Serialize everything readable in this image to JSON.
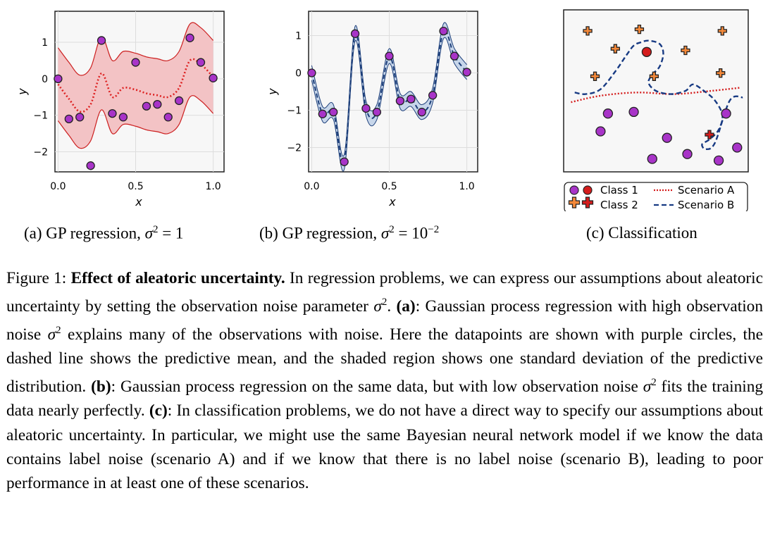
{
  "colors": {
    "panel_a_band": "#f3c3c5",
    "panel_a_line": "#cc1f1f",
    "panel_a_mean": "#dd2222",
    "panel_b_band": "#c7d6ea",
    "panel_b_line": "#1d3f7a",
    "panel_b_mean": "#1d3f7a",
    "point_fill": "#a834c8",
    "class1": "#a834c8",
    "class2": "#f4893a",
    "class2_dark": "#d41c1c",
    "scenario_a": "#d41c1c",
    "scenario_b": "#173a83"
  },
  "chart_data": [
    {
      "id": "a",
      "type": "scatter",
      "title": "",
      "xlabel": "x",
      "ylabel": "y",
      "xlim": [
        -0.02,
        1.07
      ],
      "ylim": [
        -2.55,
        1.85
      ],
      "xticks": [
        0.0,
        0.5,
        1.0
      ],
      "xtick_labels": [
        "0.0",
        "0.5",
        "1.0"
      ],
      "yticks": [
        1,
        0,
        -1,
        -2
      ],
      "ytick_labels": [
        "1",
        "0",
        "−1",
        "−2"
      ],
      "tick_side": "left",
      "points": {
        "x": [
          0.0,
          0.07,
          0.14,
          0.21,
          0.28,
          0.35,
          0.42,
          0.5,
          0.57,
          0.64,
          0.71,
          0.78,
          0.85,
          0.92,
          1.0
        ],
        "y": [
          0.0,
          -1.1,
          -1.05,
          -2.38,
          1.05,
          -0.95,
          -1.05,
          0.45,
          -0.75,
          -0.7,
          -1.05,
          -0.6,
          1.12,
          0.45,
          0.02
        ]
      },
      "mean": {
        "x": [
          0.0,
          0.07,
          0.14,
          0.21,
          0.28,
          0.35,
          0.42,
          0.5,
          0.57,
          0.64,
          0.71,
          0.78,
          0.85,
          0.92,
          1.0
        ],
        "y": [
          -0.15,
          -0.55,
          -0.9,
          -0.7,
          0.15,
          -0.5,
          -0.25,
          -0.3,
          -0.4,
          -0.45,
          -0.5,
          -0.25,
          0.5,
          0.4,
          0.05
        ]
      },
      "band_std": 1.0
    },
    {
      "id": "b",
      "type": "scatter",
      "title": "",
      "xlabel": "x",
      "ylabel": "y",
      "xlim": [
        -0.02,
        1.07
      ],
      "ylim": [
        -2.65,
        1.65
      ],
      "xticks": [
        0.0,
        0.5,
        1.0
      ],
      "xtick_labels": [
        "0.0",
        "0.5",
        "1.0"
      ],
      "yticks": [
        1,
        0,
        -1,
        -2
      ],
      "ytick_labels": [
        "1",
        "0",
        "−1",
        "−2"
      ],
      "tick_side": "left",
      "points": {
        "x": [
          0.0,
          0.07,
          0.14,
          0.21,
          0.28,
          0.35,
          0.42,
          0.5,
          0.57,
          0.64,
          0.71,
          0.78,
          0.85,
          0.92,
          1.0
        ],
        "y": [
          0.0,
          -1.1,
          -1.05,
          -2.38,
          1.05,
          -0.95,
          -1.05,
          0.45,
          -0.75,
          -0.7,
          -1.05,
          -0.6,
          1.12,
          0.45,
          0.02
        ]
      },
      "mean": {
        "x": [
          0.0,
          0.07,
          0.14,
          0.21,
          0.28,
          0.35,
          0.42,
          0.5,
          0.57,
          0.64,
          0.71,
          0.78,
          0.85,
          0.92,
          1.0
        ],
        "y": [
          0.0,
          -1.1,
          -1.05,
          -2.38,
          1.05,
          -0.95,
          -1.05,
          0.45,
          -0.75,
          -0.7,
          -1.05,
          -0.6,
          1.12,
          0.45,
          0.02
        ]
      },
      "band_std": 0.2
    },
    {
      "id": "c",
      "type": "scatter",
      "title": "",
      "xlabel": "",
      "ylabel": "",
      "xlim": [
        0,
        1
      ],
      "ylim": [
        0,
        1
      ],
      "class1": {
        "x": [
          0.38,
          0.2,
          0.56,
          0.88,
          0.67,
          0.48,
          0.84,
          0.24,
          0.94
        ],
        "y": [
          0.37,
          0.25,
          0.21,
          0.36,
          0.11,
          0.08,
          0.07,
          0.36,
          0.15
        ]
      },
      "class1_highlight": {
        "x": [
          0.45
        ],
        "y": [
          0.74
        ]
      },
      "class2": {
        "x": [
          0.13,
          0.41,
          0.86,
          0.28,
          0.66,
          0.17,
          0.85,
          0.49
        ],
        "y": [
          0.87,
          0.88,
          0.87,
          0.76,
          0.75,
          0.59,
          0.61,
          0.59
        ]
      },
      "class2_highlight": {
        "x": [
          0.79
        ],
        "y": [
          0.23
        ]
      },
      "scenario_a": {
        "x": [
          0.04,
          0.2,
          0.4,
          0.6,
          0.8,
          0.96
        ],
        "y": [
          0.43,
          0.47,
          0.49,
          0.48,
          0.5,
          0.52
        ]
      },
      "scenario_b": {
        "x": [
          0.06,
          0.12,
          0.2,
          0.28,
          0.34,
          0.38,
          0.42,
          0.46,
          0.52,
          0.54,
          0.52,
          0.48,
          0.46,
          0.5,
          0.58,
          0.66,
          0.7,
          0.76,
          0.82,
          0.86,
          0.84,
          0.79,
          0.75,
          0.77,
          0.82,
          0.9,
          0.97
        ],
        "y": [
          0.49,
          0.48,
          0.51,
          0.62,
          0.72,
          0.78,
          0.8,
          0.81,
          0.79,
          0.73,
          0.65,
          0.6,
          0.55,
          0.5,
          0.48,
          0.5,
          0.54,
          0.5,
          0.44,
          0.35,
          0.26,
          0.2,
          0.17,
          0.14,
          0.18,
          0.44,
          0.46
        ]
      },
      "legend": {
        "position": "below",
        "entries": [
          {
            "label": "Class 1",
            "kind": "class1"
          },
          {
            "label": "Class 2",
            "kind": "class2"
          },
          {
            "label": "Scenario A",
            "kind": "scenario_a"
          },
          {
            "label": "Scenario B",
            "kind": "scenario_b"
          }
        ]
      }
    }
  ],
  "subcaptions": {
    "a": {
      "prefix": "(a) GP regression, ",
      "math": "σ",
      "sup": "2",
      "suffix": " = 1"
    },
    "b": {
      "prefix": "(b) GP regression, ",
      "math": "σ",
      "sup": "2",
      "suffix": " = 10",
      "sup2": "−2"
    },
    "c": {
      "text": "(c) Classification"
    }
  },
  "caption": {
    "label": "Figure 1:",
    "bold_title": "Effect of aleatoric uncertainty.",
    "t1": " In regression problems, we can express our assumptions about aleatoric uncertainty by setting the observation noise parameter ",
    "sigma": "σ",
    "sup": "2",
    "t2": ". ",
    "a_label": "(a)",
    "t3": ": Gaussian process regression with high observation noise ",
    "t4": " explains many of the observations with noise. Here the datapoints are shown with purple circles, the dashed line shows the predictive mean, and the shaded region shows one standard deviation of the predictive distribution. ",
    "b_label": "(b)",
    "t5": ": Gaussian process regression on the same data, but with low observation noise ",
    "t6": " fits the training data nearly perfectly. ",
    "c_label": "(c)",
    "t7": ": In classification problems, we do not have a direct way to specify our assumptions about aleatoric uncertainty. In particular, we might use the same Bayesian neural network model if we know the data contains label noise (scenario A) and if we know that there is no label noise (scenario B), leading to poor performance in at least one of these scenarios."
  }
}
